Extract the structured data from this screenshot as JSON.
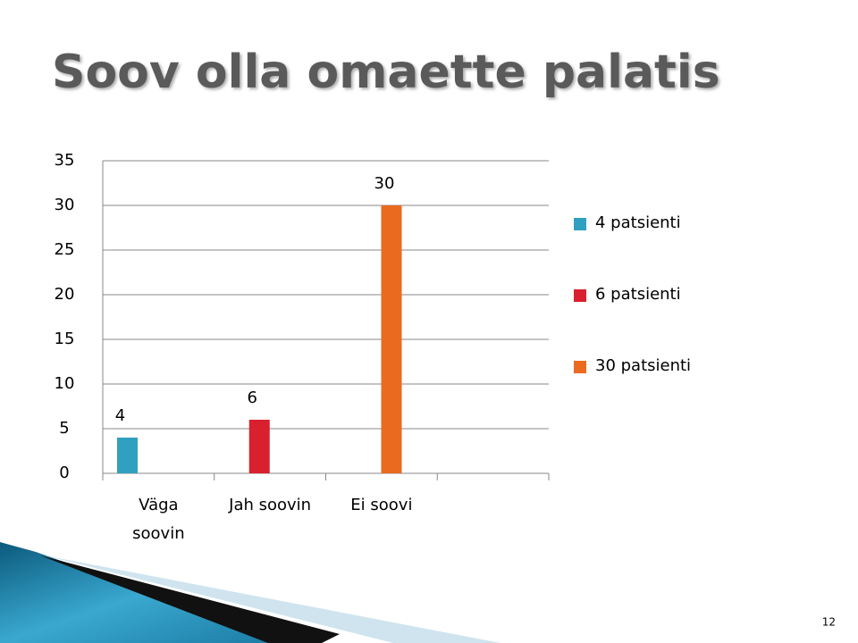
{
  "chart_data": {
    "type": "bar",
    "title": "Soov olla omaette palatis",
    "categories": [
      "Väga soovin",
      "Jah soovin",
      "Ei soovi",
      null
    ],
    "series": [
      {
        "name": "4 patsienti",
        "color": "#31a0c0",
        "values": [
          4,
          null,
          null,
          null
        ]
      },
      {
        "name": "6 patsienti",
        "color": "#d9202f",
        "values": [
          null,
          6,
          null,
          null
        ]
      },
      {
        "name": "30 patsienti",
        "color": "#ea6a1f",
        "values": [
          null,
          null,
          30,
          null
        ]
      }
    ],
    "ylim": [
      0,
      35
    ],
    "yticks": [
      0,
      5,
      10,
      15,
      20,
      25,
      30,
      35
    ],
    "grid": true,
    "legend": "right"
  },
  "slide_number": 12
}
